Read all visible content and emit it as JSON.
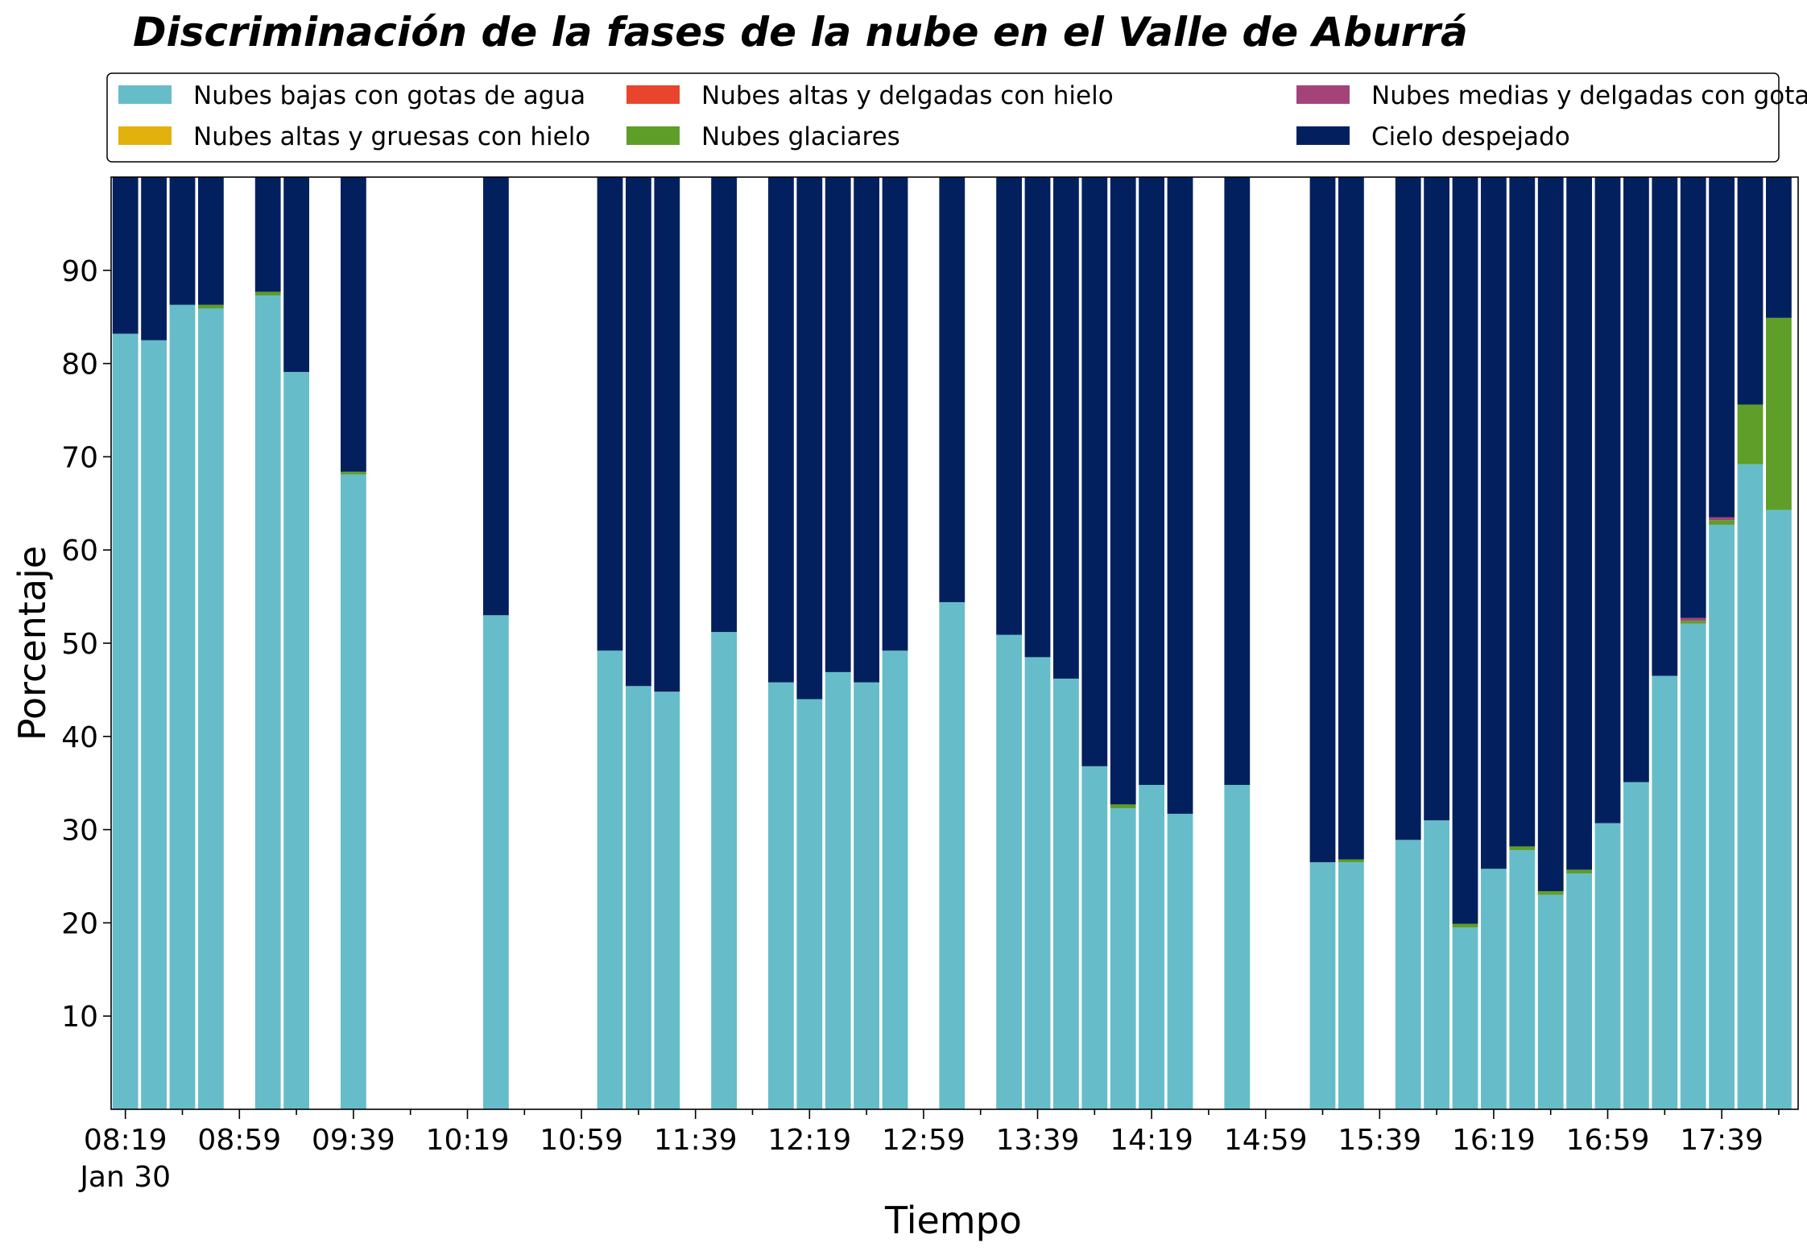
{
  "chart_data": {
    "type": "bar",
    "stacked": true,
    "title": "Discriminación de la fases de la nube en el Valle de Aburrá",
    "xlabel": "Tiempo",
    "ylabel": "Porcentaje",
    "ylim": [
      0,
      100
    ],
    "yticks": [
      10,
      20,
      30,
      40,
      50,
      60,
      70,
      80,
      90
    ],
    "xticks": [
      "08:19",
      "08:59",
      "09:39",
      "10:19",
      "10:59",
      "11:39",
      "12:19",
      "12:59",
      "13:39",
      "14:19",
      "14:59",
      "15:39",
      "16:19",
      "16:59",
      "17:39"
    ],
    "xtick_date": "Jan 30",
    "grid": false,
    "legend_position": "top",
    "slot_minutes": 10,
    "series_order": [
      "Nubes bajas con gotas de agua",
      "Nubes glaciares",
      "Nubes altas y gruesas con hielo",
      "Nubes altas y delgadas con hielo",
      "Nubes medias y delgadas con gotas de agua",
      "Cielo despejado"
    ],
    "legend": [
      {
        "label": "Nubes bajas con gotas de agua",
        "color": "#66bdc9"
      },
      {
        "label": "Nubes altas y gruesas con hielo",
        "color": "#e2b10d"
      },
      {
        "label": "Nubes altas y delgadas con hielo",
        "color": "#e9452d"
      },
      {
        "label": "Nubes glaciares",
        "color": "#5e9e29"
      },
      {
        "label": "Nubes medias y delgadas con gotas de agua",
        "color": "#a4437a"
      },
      {
        "label": "Cielo despejado",
        "color": "#03205e"
      }
    ],
    "x": [
      "08:19",
      "08:29",
      "08:39",
      "08:49",
      "09:09",
      "09:19",
      "09:39",
      "10:29",
      "11:09",
      "11:19",
      "11:29",
      "11:49",
      "12:09",
      "12:19",
      "12:29",
      "12:39",
      "12:49",
      "13:09",
      "13:29",
      "13:39",
      "13:49",
      "13:59",
      "14:09",
      "14:19",
      "14:29",
      "14:49",
      "15:19",
      "15:29",
      "15:49",
      "15:59",
      "16:09",
      "16:19",
      "16:29",
      "16:39",
      "16:49",
      "16:59",
      "17:09",
      "17:19",
      "17:29",
      "17:39",
      "17:49",
      "17:59"
    ],
    "series": [
      {
        "name": "Nubes bajas con gotas de agua",
        "values": [
          83.2,
          82.5,
          86.3,
          85.9,
          87.3,
          79.1,
          68.1,
          53.0,
          49.2,
          45.4,
          44.8,
          51.2,
          45.8,
          44.0,
          46.9,
          45.8,
          49.2,
          54.4,
          50.9,
          48.5,
          46.2,
          36.8,
          32.3,
          34.8,
          31.7,
          34.8,
          26.5,
          26.5,
          28.9,
          31.0,
          19.5,
          25.8,
          27.8,
          23.0,
          25.3,
          30.7,
          35.1,
          46.5,
          52.1,
          62.7,
          69.2,
          64.3
        ]
      },
      {
        "name": "Nubes glaciares",
        "values": [
          0,
          0,
          0,
          0.4,
          0.4,
          0,
          0.3,
          0,
          0,
          0,
          0,
          0,
          0,
          0,
          0,
          0,
          0,
          0,
          0,
          0,
          0,
          0,
          0.4,
          0,
          0,
          0,
          0,
          0.3,
          0,
          0,
          0.4,
          0,
          0.4,
          0.4,
          0.4,
          0,
          0,
          0,
          0.3,
          0.5,
          6.4,
          20.6
        ]
      },
      {
        "name": "Nubes altas y gruesas con hielo",
        "values": [
          0,
          0,
          0,
          0,
          0,
          0,
          0,
          0,
          0,
          0,
          0,
          0,
          0,
          0,
          0,
          0,
          0,
          0,
          0,
          0,
          0,
          0,
          0,
          0,
          0,
          0,
          0,
          0,
          0,
          0,
          0,
          0,
          0,
          0,
          0,
          0,
          0,
          0,
          0,
          0,
          0,
          0
        ]
      },
      {
        "name": "Nubes altas y delgadas con hielo",
        "values": [
          0,
          0,
          0,
          0,
          0,
          0,
          0,
          0,
          0,
          0,
          0,
          0,
          0,
          0,
          0,
          0,
          0,
          0,
          0,
          0,
          0,
          0,
          0,
          0,
          0,
          0,
          0,
          0,
          0,
          0,
          0,
          0,
          0,
          0,
          0,
          0,
          0,
          0,
          0,
          0,
          0,
          0
        ]
      },
      {
        "name": "Nubes medias y delgadas con gotas de agua",
        "values": [
          0,
          0,
          0,
          0,
          0,
          0,
          0,
          0,
          0,
          0,
          0,
          0,
          0,
          0,
          0,
          0,
          0,
          0,
          0,
          0,
          0,
          0,
          0,
          0,
          0,
          0,
          0,
          0,
          0,
          0,
          0,
          0,
          0,
          0,
          0,
          0,
          0,
          0,
          0.3,
          0.3,
          0,
          0
        ]
      },
      {
        "name": "Cielo despejado",
        "values": [
          16.8,
          17.5,
          13.7,
          13.7,
          12.3,
          20.9,
          31.6,
          47.0,
          50.8,
          54.6,
          55.2,
          48.8,
          54.2,
          56.0,
          53.1,
          54.2,
          50.8,
          45.6,
          49.1,
          51.5,
          53.8,
          63.2,
          67.3,
          65.2,
          68.3,
          65.2,
          73.5,
          73.2,
          71.1,
          69.0,
          80.1,
          74.2,
          71.8,
          76.6,
          74.3,
          69.3,
          64.9,
          53.5,
          47.3,
          36.5,
          24.4,
          15.1
        ]
      }
    ]
  }
}
